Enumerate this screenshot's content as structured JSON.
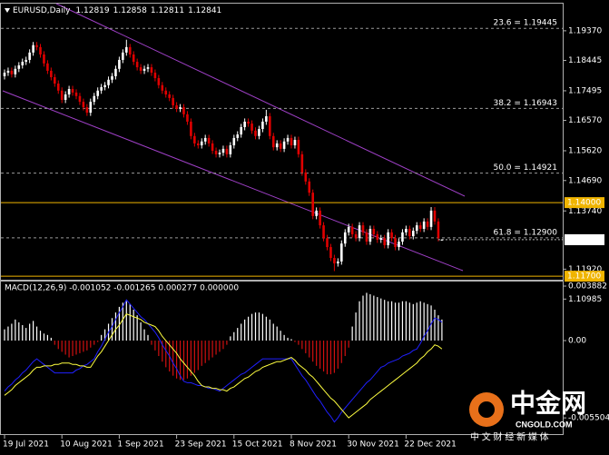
{
  "chart_data": [
    {
      "type": "candlestick",
      "title": "EURUSD,Daily",
      "categories": [
        "19 Jul 2021",
        null,
        null,
        null,
        null,
        null,
        null,
        null,
        null,
        null,
        null,
        null,
        null,
        null,
        null,
        null,
        "10 Aug 2021",
        null,
        null,
        null,
        null,
        null,
        null,
        null,
        null,
        null,
        null,
        null,
        null,
        null,
        null,
        null,
        "1 Sep 2021",
        null,
        null,
        null,
        null,
        null,
        null,
        null,
        null,
        null,
        null,
        null,
        null,
        null,
        null,
        null,
        "23 Sep 2021",
        null,
        null,
        null,
        null,
        null,
        null,
        null,
        null,
        null,
        null,
        null,
        null,
        null,
        null,
        null,
        "15 Oct 2021",
        null,
        null,
        null,
        null,
        null,
        null,
        null,
        null,
        null,
        null,
        null,
        null,
        null,
        null,
        null,
        "8 Nov 2021",
        null,
        null,
        null,
        null,
        null,
        null,
        null,
        null,
        null,
        null,
        null,
        null,
        null,
        null,
        null,
        "30 Nov 2021",
        null,
        null,
        null,
        null,
        null,
        null,
        null,
        null,
        null,
        null,
        null,
        null,
        null,
        null,
        null,
        "22 Dec 2021",
        null,
        null,
        null,
        null,
        null,
        null,
        null,
        null,
        null,
        null
      ],
      "open": [
        1.1795,
        1.1806,
        1.1812,
        1.1801,
        1.1818,
        1.1829,
        1.184,
        1.1846,
        1.1869,
        1.1892,
        1.1886,
        1.1863,
        1.1835,
        1.1812,
        1.1792,
        1.1772,
        1.175,
        1.1721,
        1.1738,
        1.1755,
        1.1744,
        1.1733,
        1.1715,
        1.1698,
        1.1681,
        1.1715,
        1.1733,
        1.175,
        1.1761,
        1.1767,
        1.1784,
        1.1795,
        1.1818,
        1.1846,
        1.1869,
        1.1886,
        1.1863,
        1.184,
        1.1823,
        1.1812,
        1.1818,
        1.1823,
        1.1806,
        1.1789,
        1.1767,
        1.175,
        1.1738,
        1.1727,
        1.1704,
        1.1693,
        1.1698,
        1.1676,
        1.1653,
        1.1608,
        1.1585,
        1.1579,
        1.1591,
        1.1602,
        1.1585,
        1.1562,
        1.1551,
        1.1556,
        1.1568,
        1.1551,
        1.1579,
        1.1602,
        1.1613,
        1.1636,
        1.1653,
        1.1647,
        1.1625,
        1.1608,
        1.163,
        1.1653,
        1.167,
        1.1608,
        1.1573,
        1.1585,
        1.1568,
        1.1591,
        1.1602,
        1.1579,
        1.1596,
        1.1551,
        1.1494,
        1.1466,
        1.1431,
        1.1358,
        1.1375,
        1.1329,
        1.1289,
        1.1261,
        1.1227,
        1.121,
        1.1216,
        1.1272,
        1.1307,
        1.1324,
        1.1301,
        1.1289,
        1.1329,
        1.1307,
        1.1278,
        1.1318,
        1.1301,
        1.1284,
        1.1289,
        1.1267,
        1.1307,
        1.1289,
        1.1261,
        1.1278,
        1.1307,
        1.1318,
        1.1295,
        1.1312,
        1.1329,
        1.1318,
        1.1341,
        1.1324,
        1.1375,
        1.1341,
        1.12819
      ],
      "high": [
        1.1816,
        1.1822,
        1.1822,
        1.1828,
        1.1839,
        1.185,
        1.1856,
        1.1879,
        1.1902,
        1.1902,
        1.1896,
        1.1873,
        1.1845,
        1.1822,
        1.1802,
        1.1782,
        1.176,
        1.1748,
        1.1765,
        1.1765,
        1.1754,
        1.1743,
        1.1725,
        1.1708,
        1.1725,
        1.1743,
        1.176,
        1.1771,
        1.1777,
        1.1794,
        1.1805,
        1.1828,
        1.1856,
        1.1879,
        1.1909,
        1.1896,
        1.1873,
        1.185,
        1.1833,
        1.1828,
        1.1833,
        1.1833,
        1.1816,
        1.1799,
        1.1777,
        1.176,
        1.1748,
        1.1737,
        1.1714,
        1.1708,
        1.1708,
        1.1686,
        1.1663,
        1.1618,
        1.1595,
        1.1601,
        1.1612,
        1.1612,
        1.1595,
        1.1572,
        1.1566,
        1.1578,
        1.1578,
        1.1589,
        1.1612,
        1.1623,
        1.1646,
        1.1663,
        1.1663,
        1.1657,
        1.1635,
        1.164,
        1.1663,
        1.169,
        1.168,
        1.1618,
        1.1595,
        1.1595,
        1.1601,
        1.1612,
        1.1612,
        1.1606,
        1.1606,
        1.1561,
        1.1504,
        1.1476,
        1.1441,
        1.1385,
        1.1385,
        1.1339,
        1.1299,
        1.1271,
        1.1237,
        1.1226,
        1.1282,
        1.1317,
        1.1334,
        1.1334,
        1.1311,
        1.1339,
        1.1339,
        1.1317,
        1.1328,
        1.1328,
        1.1311,
        1.1299,
        1.1299,
        1.1317,
        1.1317,
        1.1299,
        1.1288,
        1.1317,
        1.1328,
        1.1328,
        1.1322,
        1.1339,
        1.1339,
        1.1351,
        1.1351,
        1.1386,
        1.1386,
        1.1351,
        1.12858
      ],
      "low": [
        1.1785,
        1.1796,
        1.1791,
        1.1791,
        1.1808,
        1.1819,
        1.183,
        1.1836,
        1.1859,
        1.1876,
        1.1853,
        1.1825,
        1.1802,
        1.1782,
        1.1762,
        1.174,
        1.1711,
        1.1711,
        1.1728,
        1.1734,
        1.1723,
        1.1705,
        1.1688,
        1.1671,
        1.1671,
        1.1705,
        1.1723,
        1.174,
        1.1751,
        1.1757,
        1.1774,
        1.1785,
        1.1808,
        1.1836,
        1.1859,
        1.1853,
        1.183,
        1.1813,
        1.1802,
        1.1802,
        1.1808,
        1.1796,
        1.1779,
        1.1757,
        1.174,
        1.1728,
        1.1717,
        1.1694,
        1.1683,
        1.1683,
        1.1666,
        1.1643,
        1.1598,
        1.1575,
        1.1569,
        1.1569,
        1.1581,
        1.1575,
        1.1552,
        1.1541,
        1.1541,
        1.1546,
        1.1541,
        1.1541,
        1.1569,
        1.1592,
        1.1603,
        1.1626,
        1.1637,
        1.1615,
        1.1598,
        1.1598,
        1.162,
        1.1643,
        1.1598,
        1.1563,
        1.1563,
        1.1558,
        1.1558,
        1.1581,
        1.1569,
        1.1569,
        1.1541,
        1.1484,
        1.1456,
        1.1421,
        1.1348,
        1.1348,
        1.1319,
        1.1279,
        1.1251,
        1.1217,
        1.1186,
        1.12,
        1.1206,
        1.1262,
        1.1297,
        1.1291,
        1.1279,
        1.1279,
        1.1297,
        1.1268,
        1.1268,
        1.1291,
        1.1274,
        1.1274,
        1.1257,
        1.1257,
        1.1279,
        1.1251,
        1.1251,
        1.1268,
        1.1297,
        1.1285,
        1.1285,
        1.1302,
        1.1308,
        1.1308,
        1.1314,
        1.1314,
        1.1331,
        1.1279,
        1.12811
      ],
      "close": [
        1.1806,
        1.1812,
        1.1801,
        1.1818,
        1.1829,
        1.184,
        1.1846,
        1.1869,
        1.1892,
        1.1886,
        1.1863,
        1.1835,
        1.1812,
        1.1792,
        1.1772,
        1.175,
        1.1721,
        1.1738,
        1.1755,
        1.1744,
        1.1733,
        1.1715,
        1.1698,
        1.1681,
        1.1715,
        1.1733,
        1.175,
        1.1761,
        1.1767,
        1.1784,
        1.1795,
        1.1818,
        1.1846,
        1.1869,
        1.1886,
        1.1863,
        1.184,
        1.1823,
        1.1812,
        1.1818,
        1.1823,
        1.1806,
        1.1789,
        1.1767,
        1.175,
        1.1738,
        1.1727,
        1.1704,
        1.1693,
        1.1698,
        1.1676,
        1.1653,
        1.1608,
        1.1585,
        1.1579,
        1.1591,
        1.1602,
        1.1585,
        1.1562,
        1.1551,
        1.1556,
        1.1568,
        1.1551,
        1.1579,
        1.1602,
        1.1613,
        1.1636,
        1.1653,
        1.1647,
        1.1625,
        1.1608,
        1.163,
        1.1653,
        1.167,
        1.1608,
        1.1573,
        1.1585,
        1.1568,
        1.1591,
        1.1602,
        1.1579,
        1.1596,
        1.1551,
        1.1494,
        1.1466,
        1.1431,
        1.1358,
        1.1375,
        1.1329,
        1.1289,
        1.1261,
        1.1227,
        1.121,
        1.1216,
        1.1272,
        1.1307,
        1.1324,
        1.1301,
        1.1289,
        1.1329,
        1.1307,
        1.1278,
        1.1318,
        1.1301,
        1.1284,
        1.1289,
        1.1267,
        1.1307,
        1.1289,
        1.1261,
        1.1278,
        1.1307,
        1.1318,
        1.1295,
        1.1312,
        1.1329,
        1.1318,
        1.1341,
        1.1324,
        1.1375,
        1.1341,
        1.1289,
        1.12841
      ],
      "up_color": "#ffffff",
      "down_color": "#e00000",
      "ylim": [
        1.1159,
        1.2019
      ],
      "yticks": [
        {
          "value": 1.1937,
          "label": "1.19370"
        },
        1.18445,
        1.17495,
        {
          "value": 1.1657,
          "label": "1.16570"
        },
        {
          "value": 1.1562,
          "label": "1.15620"
        },
        {
          "value": 1.1469,
          "label": "1.14690"
        },
        {
          "value": 1.1374,
          "label": "1.13740"
        },
        {
          "value": 1.1192,
          "label": "1.11920"
        },
        1.10985
      ],
      "fib_levels": [
        {
          "value": 1.19445,
          "label": "23.6 = 1.19445"
        },
        {
          "value": 1.16943,
          "label": "38.2 = 1.16943"
        },
        {
          "value": 1.14921,
          "label": "50.0 = 1.14921"
        },
        {
          "value": 1.129,
          "label": "61.8 = 1.12900"
        }
      ],
      "fib_color": "#9a9a9a",
      "hlines": [
        {
          "value": 1.14,
          "label": "1.14000"
        },
        {
          "value": 1.117,
          "label": "1.11700"
        }
      ],
      "hline_color": "#f0b400"
    },
    {
      "type": "macd",
      "title": "MACD(12,26,9) -0.001052 -0.001265 0.000277 0.000000",
      "histogram": {
        "up_color": "#ffffff",
        "down_color": "#d01010",
        "values": [
          0.0008,
          0.001,
          0.0012,
          0.0015,
          0.0013,
          0.0011,
          0.0009,
          0.0012,
          0.0014,
          0.001,
          0.0007,
          0.0005,
          0.0004,
          0.0002,
          -0.0003,
          -0.0006,
          -0.0008,
          -0.001,
          -0.0012,
          -0.0011,
          -0.001,
          -0.0009,
          -0.0008,
          -0.0007,
          -0.0005,
          -0.0003,
          -0.0001,
          0.0004,
          0.0008,
          0.0012,
          0.0016,
          0.002,
          0.0024,
          0.0027,
          0.0028,
          0.0026,
          0.0022,
          0.0018,
          0.0013,
          0.0008,
          0.0004,
          -0.0003,
          -0.0007,
          -0.0011,
          -0.0015,
          -0.0019,
          -0.0022,
          -0.0025,
          -0.0027,
          -0.0028,
          -0.0028,
          -0.0027,
          -0.0025,
          -0.0023,
          -0.0021,
          -0.0018,
          -0.0016,
          -0.0014,
          -0.0012,
          -0.001,
          -0.0008,
          -0.0006,
          -0.0003,
          0.0003,
          0.0006,
          0.0009,
          0.0012,
          0.0015,
          0.0017,
          0.0019,
          0.002,
          0.002,
          0.0019,
          0.0017,
          0.0015,
          0.0012,
          0.001,
          0.0007,
          0.0004,
          0.0002,
          0.0001,
          -0.0001,
          -0.0003,
          -0.0006,
          -0.0009,
          -0.0012,
          -0.0015,
          -0.0018,
          -0.002,
          -0.0022,
          -0.0024,
          -0.0024,
          -0.0023,
          -0.002,
          -0.0016,
          -0.0011,
          -0.0005,
          0.001,
          0.002,
          0.0028,
          0.0032,
          0.0034,
          0.0033,
          0.0032,
          0.0031,
          0.003,
          0.0029,
          0.0028,
          0.0028,
          0.0027,
          0.0027,
          0.0028,
          0.0028,
          0.0027,
          0.0026,
          0.0027,
          0.0028,
          0.0027,
          0.0026,
          0.0025,
          0.0022,
          0.0018,
          0.0015
        ]
      },
      "macd_line": {
        "color": "#2020ff",
        "values": [
          -0.0036,
          -0.0033,
          -0.0031,
          -0.0028,
          -0.0026,
          -0.0023,
          -0.0021,
          -0.0018,
          -0.0015,
          -0.0013,
          -0.0015,
          -0.0017,
          -0.0019,
          -0.0021,
          -0.0023,
          -0.0023,
          -0.0023,
          -0.0023,
          -0.0023,
          -0.0023,
          -0.0021,
          -0.002,
          -0.0018,
          -0.0017,
          -0.0015,
          -0.0013,
          -0.0008,
          -0.0004,
          0.0001,
          0.0006,
          0.001,
          0.0015,
          0.002,
          0.0024,
          0.0029,
          0.0026,
          0.0023,
          0.002,
          0.0017,
          0.0015,
          0.0012,
          0.0009,
          0.0006,
          0.0002,
          -0.0003,
          -0.0007,
          -0.0011,
          -0.0016,
          -0.002,
          -0.0025,
          -0.0029,
          -0.003,
          -0.003,
          -0.0031,
          -0.0032,
          -0.0032,
          -0.0033,
          -0.0034,
          -0.0034,
          -0.0035,
          -0.0036,
          -0.0034,
          -0.0032,
          -0.003,
          -0.0028,
          -0.0026,
          -0.0024,
          -0.0023,
          -0.0021,
          -0.0019,
          -0.0017,
          -0.0015,
          -0.0013,
          -0.0013,
          -0.0013,
          -0.0013,
          -0.0013,
          -0.0013,
          -0.0013,
          -0.0013,
          -0.0013,
          -0.0017,
          -0.0021,
          -0.0025,
          -0.0028,
          -0.0032,
          -0.0036,
          -0.004,
          -0.0043,
          -0.0047,
          -0.0051,
          -0.0054,
          -0.0058,
          -0.0055,
          -0.0051,
          -0.0048,
          -0.0045,
          -0.0042,
          -0.0039,
          -0.0036,
          -0.0033,
          -0.003,
          -0.0028,
          -0.0025,
          -0.0022,
          -0.0019,
          -0.0018,
          -0.0016,
          -0.0015,
          -0.0014,
          -0.0013,
          -0.0011,
          -0.001,
          -0.0009,
          -0.0007,
          -0.0006,
          -0.0002,
          0.0003,
          0.0007,
          0.0012,
          0.0016,
          0.0015,
          0.0013
        ]
      },
      "signal_line": {
        "color": "#ffff40",
        "values": [
          -0.0039,
          -0.0037,
          -0.0035,
          -0.0032,
          -0.003,
          -0.0028,
          -0.0026,
          -0.0024,
          -0.0021,
          -0.0019,
          -0.0019,
          -0.0018,
          -0.0018,
          -0.0018,
          -0.0017,
          -0.0017,
          -0.0016,
          -0.0016,
          -0.0016,
          -0.0017,
          -0.0017,
          -0.0018,
          -0.0018,
          -0.0019,
          -0.0019,
          -0.0015,
          -0.0011,
          -0.0008,
          -0.0004,
          0.0,
          0.0004,
          0.0008,
          0.0011,
          0.0015,
          0.0019,
          0.0018,
          0.0017,
          0.0016,
          0.0015,
          0.0013,
          0.0012,
          0.0011,
          0.001,
          0.0007,
          0.0003,
          0.0,
          -0.0003,
          -0.0006,
          -0.0009,
          -0.0013,
          -0.0016,
          -0.0019,
          -0.0022,
          -0.0025,
          -0.0029,
          -0.0032,
          -0.0033,
          -0.0033,
          -0.0034,
          -0.0034,
          -0.0035,
          -0.0035,
          -0.0036,
          -0.0034,
          -0.0033,
          -0.0031,
          -0.0029,
          -0.0027,
          -0.0026,
          -0.0024,
          -0.0022,
          -0.0021,
          -0.0019,
          -0.0018,
          -0.0017,
          -0.0016,
          -0.0015,
          -0.0015,
          -0.0014,
          -0.0013,
          -0.0012,
          -0.0014,
          -0.0017,
          -0.0019,
          -0.0021,
          -0.0024,
          -0.0026,
          -0.0029,
          -0.0032,
          -0.0035,
          -0.0038,
          -0.0041,
          -0.0043,
          -0.0046,
          -0.0049,
          -0.0052,
          -0.0055,
          -0.0053,
          -0.0051,
          -0.0049,
          -0.0047,
          -0.0045,
          -0.0042,
          -0.004,
          -0.0038,
          -0.0036,
          -0.0034,
          -0.0032,
          -0.003,
          -0.0028,
          -0.0026,
          -0.0024,
          -0.0022,
          -0.002,
          -0.0018,
          -0.0016,
          -0.0013,
          -0.0011,
          -0.0008,
          -0.0006,
          -0.0003,
          -0.0004,
          -0.0006
        ]
      },
      "ylim": [
        -0.00666,
        0.00414
      ],
      "yticks": [
        0.003882,
        {
          "value": 0,
          "label": "0.00"
        },
        -0.005504
      ]
    }
  ],
  "watermark": {
    "brand": "中金网",
    "site": "CNGOLD.COM",
    "slogan": "中 文 财 经 新 媒 体"
  }
}
